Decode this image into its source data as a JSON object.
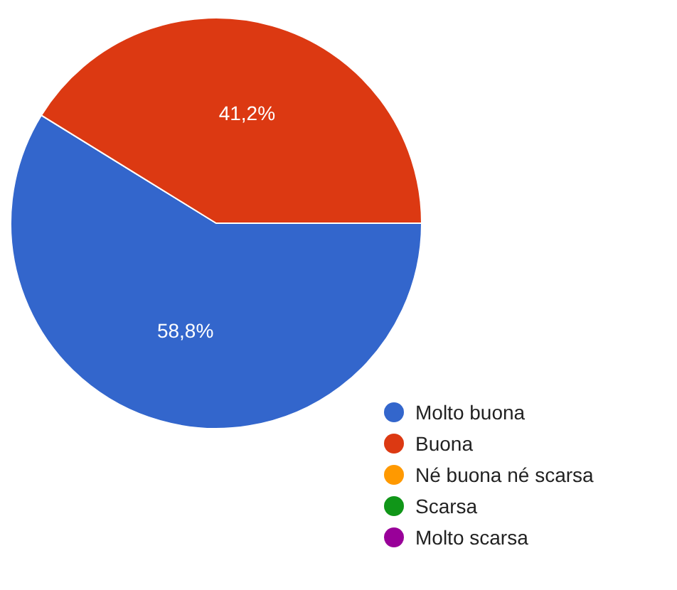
{
  "chart_data": {
    "type": "pie",
    "categories": [
      "Molto buona",
      "Buona",
      "Né buona né scarsa",
      "Scarsa",
      "Molto scarsa"
    ],
    "values": [
      58.8,
      41.2,
      0,
      0,
      0
    ],
    "colors": [
      "#3366cc",
      "#dc3912",
      "#ff9900",
      "#109618",
      "#990099"
    ],
    "value_labels": [
      "58,8%",
      "41,2%",
      null,
      null,
      null
    ],
    "legend": "bottom right"
  }
}
